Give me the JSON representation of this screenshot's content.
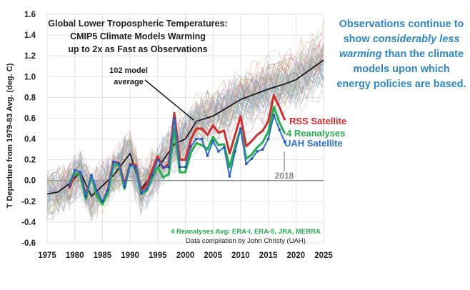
{
  "chart_data": {
    "type": "line",
    "title_lines": [
      "Global Lower Tropospheric Temperatures:",
      "CMIP5 Climate Models Warming",
      "up to 2x as Fast as Observations"
    ],
    "ylabel": "T Departure from 1979-83 Avg. (deg. C)",
    "xlabel": "",
    "xlim": [
      1975,
      2025
    ],
    "ylim": [
      -0.6,
      1.6
    ],
    "xticks": [
      "1975",
      "1980",
      "1985",
      "1990",
      "1995",
      "2000",
      "2005",
      "2010",
      "2015",
      "2020",
      "2025"
    ],
    "yticks": [
      "1.6",
      "1.4",
      "1.2",
      "1.0",
      "0.8",
      "0.6",
      "0.4",
      "0.2",
      "0.0",
      "-0.2",
      "-0.4",
      "-0.6"
    ],
    "grid": true,
    "annotations": {
      "model_average": [
        "102 model",
        "average"
      ],
      "year_marker": "2018",
      "reanalyses_note": "4 Reanalyses Avg: ERA-I, ERA-5, JRA, MERRA",
      "credit": "Data compilation by John Christy (UAH)"
    },
    "series": [
      {
        "name": "102 model average",
        "color": "#1a1a1a",
        "x": [
          1975,
          1977,
          1979,
          1981,
          1983,
          1985,
          1987,
          1990,
          1992,
          1995,
          1998,
          2000,
          2002,
          2005,
          2010,
          2015,
          2018,
          2020,
          2025
        ],
        "y": [
          -0.13,
          -0.11,
          -0.03,
          0.08,
          -0.15,
          -0.05,
          0.05,
          0.26,
          -0.08,
          0.12,
          0.35,
          0.4,
          0.57,
          0.62,
          0.78,
          0.88,
          0.93,
          0.97,
          1.16
        ]
      },
      {
        "name": "RSS Satellite",
        "color": "#d42a2a",
        "x": [
          1979,
          1980,
          1981,
          1982,
          1983,
          1984,
          1985,
          1986,
          1987,
          1988,
          1989,
          1990,
          1991,
          1992,
          1993,
          1994,
          1995,
          1996,
          1997,
          1998,
          1999,
          2000,
          2001,
          2002,
          2003,
          2004,
          2005,
          2006,
          2007,
          2008,
          2009,
          2010,
          2011,
          2012,
          2013,
          2014,
          2015,
          2016,
          2017,
          2018
        ],
        "y": [
          -0.08,
          0.06,
          0.07,
          -0.14,
          0.04,
          -0.1,
          -0.21,
          -0.08,
          0.18,
          0.17,
          -0.04,
          0.16,
          0.15,
          -0.1,
          -0.04,
          0.1,
          0.23,
          0.12,
          0.16,
          0.65,
          0.2,
          0.2,
          0.4,
          0.5,
          0.5,
          0.44,
          0.53,
          0.46,
          0.48,
          0.26,
          0.44,
          0.62,
          0.33,
          0.38,
          0.44,
          0.48,
          0.57,
          0.82,
          0.71,
          0.58
        ]
      },
      {
        "name": "4 Reanalyses",
        "color": "#22b04b",
        "x": [
          1979,
          1980,
          1981,
          1982,
          1983,
          1984,
          1985,
          1986,
          1987,
          1988,
          1989,
          1990,
          1991,
          1992,
          1993,
          1994,
          1995,
          1996,
          1997,
          1998,
          1999,
          2000,
          2001,
          2002,
          2003,
          2004,
          2005,
          2006,
          2007,
          2008,
          2009,
          2010,
          2011,
          2012,
          2013,
          2014,
          2015,
          2016,
          2017,
          2018
        ],
        "y": [
          -0.02,
          0.07,
          0.05,
          -0.18,
          0.05,
          -0.15,
          -0.23,
          -0.12,
          0.15,
          0.15,
          -0.08,
          0.15,
          0.13,
          -0.13,
          -0.1,
          0.02,
          0.13,
          0.03,
          0.06,
          0.5,
          0.08,
          0.08,
          0.27,
          0.36,
          0.34,
          0.3,
          0.42,
          0.34,
          0.35,
          0.13,
          0.33,
          0.5,
          0.21,
          0.25,
          0.32,
          0.37,
          0.47,
          0.71,
          0.56,
          0.45
        ]
      },
      {
        "name": "UAH Satellite",
        "color": "#2a6fd0",
        "x": [
          1979,
          1980,
          1981,
          1982,
          1983,
          1984,
          1985,
          1986,
          1987,
          1988,
          1989,
          1990,
          1991,
          1992,
          1993,
          1994,
          1995,
          1996,
          1997,
          1998,
          1999,
          2000,
          2001,
          2002,
          2003,
          2004,
          2005,
          2006,
          2007,
          2008,
          2009,
          2010,
          2011,
          2012,
          2013,
          2014,
          2015,
          2016,
          2017,
          2018
        ],
        "y": [
          -0.05,
          0.1,
          0.08,
          -0.15,
          0.05,
          -0.1,
          -0.2,
          -0.09,
          0.18,
          0.16,
          -0.06,
          0.15,
          0.13,
          -0.12,
          -0.08,
          0.05,
          0.2,
          0.13,
          0.13,
          0.6,
          0.13,
          0.13,
          0.33,
          0.4,
          0.4,
          0.24,
          0.38,
          0.28,
          0.32,
          0.04,
          0.28,
          0.5,
          0.16,
          0.21,
          0.28,
          0.3,
          0.4,
          0.63,
          0.49,
          0.37
        ]
      }
    ]
  },
  "side_note": {
    "part1": "Observations continue to show ",
    "emphasis": "considerably less warming",
    "part2": " than the climate models upon which energy policies are based."
  }
}
